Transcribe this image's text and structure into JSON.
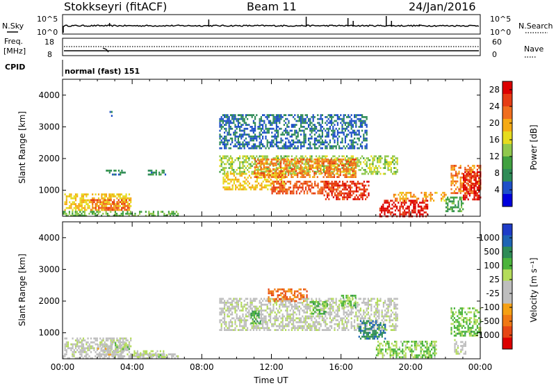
{
  "header": {
    "station": "Stokkseyri (fitACF)",
    "beam": "Beam 11",
    "date": "24/Jan/2016"
  },
  "top_panels": {
    "nsky_label": "N.Sky",
    "nsearch_label": "N.Search",
    "nsky_ticks": [
      "10^5",
      "10^0"
    ],
    "nsearch_ticks": [
      "10^5",
      "10^0"
    ],
    "freq_label_1": "Freq.",
    "freq_label_2": "[MHz]",
    "freq_ticks": [
      "18",
      "8"
    ],
    "nave_label": "Nave",
    "nave_ticks": [
      "60",
      "0"
    ],
    "cpid_label": "CPID",
    "mode": "normal (fast) 151"
  },
  "colors": {
    "power": [
      "#0000dd",
      "#1e50c8",
      "#2e8b57",
      "#40a040",
      "#90c84c",
      "#e6dc1e",
      "#f5aa14",
      "#f06e1e",
      "#e63c14",
      "#dc0000"
    ],
    "velocity": [
      "#1e3cc8",
      "#1e64b4",
      "#2e8b57",
      "#4cb43c",
      "#b4dc5a",
      "#bebebe",
      "#bebebe",
      "#f5a014",
      "#f07814",
      "#e64614",
      "#dc0000"
    ]
  },
  "chart_data": [
    {
      "type": "heatmap",
      "ylabel": "Slant Range [km]",
      "xlabel": "",
      "x_ticks": [],
      "y_ticks": [
        "1000",
        "2000",
        "3000",
        "4000"
      ],
      "ylim": [
        180,
        4500
      ],
      "xlim_hours": [
        0,
        24
      ],
      "colorbar_label": "Power [dB]",
      "colorbar_ticks": [
        "4",
        "8",
        "12",
        "16",
        "20",
        "24",
        "28"
      ],
      "colorbar_range": [
        0,
        30
      ],
      "regions": [
        {
          "t": [
            0.1,
            3.9
          ],
          "r": [
            350,
            900
          ],
          "value": 18
        },
        {
          "t": [
            0.0,
            6.6
          ],
          "r": [
            180,
            350
          ],
          "value": 12
        },
        {
          "t": [
            1.6,
            3.8
          ],
          "r": [
            380,
            720
          ],
          "value": 24
        },
        {
          "t": [
            2.4,
            3.6
          ],
          "r": [
            1500,
            1650
          ],
          "value": 8
        },
        {
          "t": [
            2.7,
            2.8
          ],
          "r": [
            3300,
            3500
          ],
          "value": 6
        },
        {
          "t": [
            4.9,
            5.9
          ],
          "r": [
            1500,
            1650
          ],
          "value": 8
        },
        {
          "t": [
            9.0,
            19.2
          ],
          "r": [
            1500,
            2100
          ],
          "value": 14
        },
        {
          "t": [
            9.2,
            12.8
          ],
          "r": [
            1000,
            1550
          ],
          "value": 18
        },
        {
          "t": [
            11.0,
            16.8
          ],
          "r": [
            1400,
            2000
          ],
          "value": 22
        },
        {
          "t": [
            12.0,
            15.8
          ],
          "r": [
            900,
            1300
          ],
          "value": 24
        },
        {
          "t": [
            15.0,
            17.6
          ],
          "r": [
            700,
            1300
          ],
          "value": 26
        },
        {
          "t": [
            9.0,
            17.5
          ],
          "r": [
            2300,
            3400
          ],
          "value": 6
        },
        {
          "t": [
            18.2,
            21.0
          ],
          "r": [
            200,
            700
          ],
          "value": 28
        },
        {
          "t": [
            19.0,
            22.0
          ],
          "r": [
            700,
            950
          ],
          "value": 20
        },
        {
          "t": [
            22.0,
            23.0
          ],
          "r": [
            350,
            800
          ],
          "value": 10
        },
        {
          "t": [
            22.3,
            24.0
          ],
          "r": [
            900,
            1800
          ],
          "value": 22
        },
        {
          "t": [
            23.0,
            24.0
          ],
          "r": [
            700,
            1600
          ],
          "value": 28
        }
      ]
    },
    {
      "type": "heatmap",
      "ylabel": "Slant Range [km]",
      "xlabel": "Time UT",
      "x_ticks": [
        "00:00",
        "04:00",
        "08:00",
        "12:00",
        "16:00",
        "20:00",
        "00:00"
      ],
      "y_ticks": [
        "1000",
        "2000",
        "3000",
        "4000"
      ],
      "ylim": [
        180,
        4500
      ],
      "xlim_hours": [
        0,
        24
      ],
      "colorbar_label": "Velocity [m s⁻¹]",
      "colorbar_ticks": [
        "1000",
        "500",
        "100",
        "25",
        "-25",
        "-100",
        "-500",
        "-1000"
      ],
      "colorbar_range": [
        -1000,
        1000
      ],
      "regions": [
        {
          "t": [
            0.1,
            3.9
          ],
          "r": [
            400,
            850
          ],
          "value": 0
        },
        {
          "t": [
            0.0,
            6.6
          ],
          "r": [
            180,
            350
          ],
          "value": 60
        },
        {
          "t": [
            2.0,
            3.5
          ],
          "r": [
            300,
            650
          ],
          "value": 120
        },
        {
          "t": [
            3.0,
            3.8
          ],
          "r": [
            400,
            700
          ],
          "value": -150
        },
        {
          "t": [
            4.0,
            6.0
          ],
          "r": [
            250,
            450
          ],
          "value": -150
        },
        {
          "t": [
            9.0,
            19.2
          ],
          "r": [
            1100,
            2100
          ],
          "value": 0
        },
        {
          "t": [
            11.8,
            14.0
          ],
          "r": [
            2000,
            2400
          ],
          "value": 600
        },
        {
          "t": [
            14.2,
            15.2
          ],
          "r": [
            1600,
            2000
          ],
          "value": -300
        },
        {
          "t": [
            10.8,
            11.4
          ],
          "r": [
            1300,
            1700
          ],
          "value": -400
        },
        {
          "t": [
            16.0,
            16.8
          ],
          "r": [
            1800,
            2200
          ],
          "value": -300
        },
        {
          "t": [
            17.0,
            18.5
          ],
          "r": [
            800,
            1400
          ],
          "value": -600
        },
        {
          "t": [
            18.0,
            21.5
          ],
          "r": [
            200,
            750
          ],
          "value": -250
        },
        {
          "t": [
            22.3,
            24.0
          ],
          "r": [
            900,
            1800
          ],
          "value": -300
        },
        {
          "t": [
            22.5,
            23.2
          ],
          "r": [
            350,
            800
          ],
          "value": 0
        }
      ]
    }
  ]
}
